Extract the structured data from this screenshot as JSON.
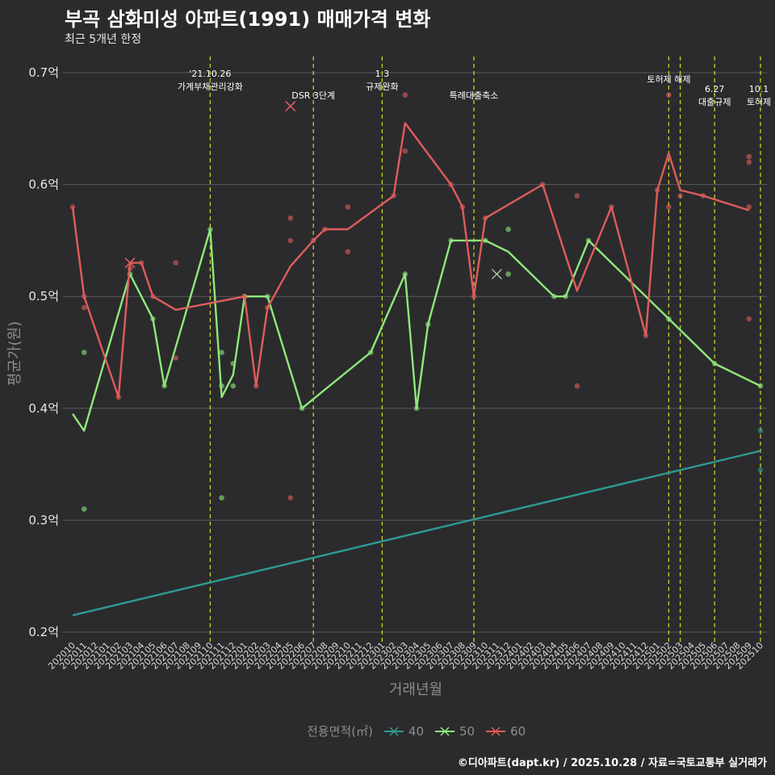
{
  "title": "부곡 삼화미성 아파트(1991) 매매가격 변화",
  "subtitle": "최근 5개년 한정",
  "caption": "©디아파트(dapt.kr) / 2025.10.28 / 자료=국토교통부 실거래가",
  "chart_data": {
    "type": "line",
    "title": "부곡 삼화미성 아파트(1991) 매매가격 변화",
    "xlabel": "거래년월",
    "ylabel": "평균가(원)",
    "ylim": [
      0.2,
      0.7
    ],
    "yticks": [
      0.2,
      0.3,
      0.4,
      0.5,
      0.6,
      0.7
    ],
    "ytick_labels": [
      "0.2억",
      "0.3억",
      "0.4억",
      "0.5억",
      "0.6억",
      "0.7억"
    ],
    "categories": [
      "202010",
      "202011",
      "202012",
      "202101",
      "202102",
      "202103",
      "202104",
      "202105",
      "202106",
      "202107",
      "202108",
      "202109",
      "202110",
      "202111",
      "202112",
      "202201",
      "202202",
      "202203",
      "202204",
      "202205",
      "202206",
      "202207",
      "202208",
      "202209",
      "202210",
      "202211",
      "202212",
      "202301",
      "202302",
      "202303",
      "202304",
      "202305",
      "202306",
      "202307",
      "202308",
      "202309",
      "202310",
      "202311",
      "202312",
      "202401",
      "202402",
      "202403",
      "202404",
      "202405",
      "202406",
      "202407",
      "202408",
      "202409",
      "202410",
      "202411",
      "202412",
      "202501",
      "202502",
      "202503",
      "202504",
      "202505",
      "202506",
      "202507",
      "202508",
      "202509",
      "202510"
    ],
    "legend_title": "전용면적(㎡)",
    "legend_position": "bottom",
    "series": [
      {
        "name": "40",
        "color": "#2e9a92",
        "line": [
          [
            0,
            0.215
          ],
          [
            60,
            0.362
          ]
        ],
        "points": [
          [
            60,
            0.38
          ],
          [
            60,
            0.345
          ]
        ],
        "crosses": []
      },
      {
        "name": "50",
        "color": "#8fe87c",
        "line": [
          [
            0,
            0.395
          ],
          [
            1,
            0.38
          ],
          [
            5,
            0.52
          ],
          [
            7,
            0.48
          ],
          [
            8,
            0.42
          ],
          [
            12,
            0.56
          ],
          [
            13,
            0.41
          ],
          [
            14,
            0.43
          ],
          [
            15,
            0.5
          ],
          [
            17,
            0.5
          ],
          [
            20,
            0.4
          ],
          [
            26,
            0.45
          ],
          [
            29,
            0.52
          ],
          [
            30,
            0.4
          ],
          [
            31,
            0.475
          ],
          [
            33,
            0.55
          ],
          [
            35,
            0.55
          ],
          [
            36,
            0.55
          ],
          [
            38,
            0.54
          ],
          [
            42,
            0.5
          ],
          [
            43,
            0.5
          ],
          [
            45,
            0.55
          ],
          [
            52,
            0.48
          ],
          [
            56,
            0.44
          ],
          [
            60,
            0.42
          ]
        ],
        "points": [
          [
            1,
            0.45
          ],
          [
            1,
            0.31
          ],
          [
            5,
            0.52
          ],
          [
            7,
            0.48
          ],
          [
            8,
            0.42
          ],
          [
            12,
            0.56
          ],
          [
            13,
            0.45
          ],
          [
            13,
            0.42
          ],
          [
            13,
            0.32
          ],
          [
            14,
            0.44
          ],
          [
            14,
            0.42
          ],
          [
            15,
            0.5
          ],
          [
            17,
            0.5
          ],
          [
            20,
            0.4
          ],
          [
            26,
            0.45
          ],
          [
            29,
            0.52
          ],
          [
            30,
            0.4
          ],
          [
            31,
            0.475
          ],
          [
            33,
            0.55
          ],
          [
            36,
            0.55
          ],
          [
            38,
            0.56
          ],
          [
            38,
            0.52
          ],
          [
            42,
            0.5
          ],
          [
            43,
            0.5
          ],
          [
            45,
            0.55
          ],
          [
            52,
            0.48
          ],
          [
            56,
            0.44
          ],
          [
            60,
            0.42
          ]
        ],
        "crosses": [
          [
            37,
            0.52
          ]
        ]
      },
      {
        "name": "60",
        "color": "#e05c5c",
        "line": [
          [
            0,
            0.58
          ],
          [
            1,
            0.5
          ],
          [
            4,
            0.41
          ],
          [
            5,
            0.53
          ],
          [
            6,
            0.53
          ],
          [
            7,
            0.5
          ],
          [
            9,
            0.488
          ],
          [
            15,
            0.5
          ],
          [
            16,
            0.42
          ],
          [
            17,
            0.49
          ],
          [
            19,
            0.527
          ],
          [
            21,
            0.55
          ],
          [
            22,
            0.56
          ],
          [
            24,
            0.56
          ],
          [
            28,
            0.59
          ],
          [
            29,
            0.655
          ],
          [
            33,
            0.6
          ],
          [
            34,
            0.58
          ],
          [
            35,
            0.5
          ],
          [
            36,
            0.57
          ],
          [
            41,
            0.6
          ],
          [
            44,
            0.505
          ],
          [
            47,
            0.58
          ],
          [
            50,
            0.465
          ],
          [
            51,
            0.595
          ],
          [
            52,
            0.628
          ],
          [
            53,
            0.595
          ],
          [
            55,
            0.59
          ],
          [
            59,
            0.577
          ]
        ],
        "points": [
          [
            0,
            0.58
          ],
          [
            1,
            0.5
          ],
          [
            1,
            0.49
          ],
          [
            4,
            0.41
          ],
          [
            5,
            0.525
          ],
          [
            6,
            0.53
          ],
          [
            7,
            0.5
          ],
          [
            9,
            0.53
          ],
          [
            9,
            0.445
          ],
          [
            15,
            0.5
          ],
          [
            16,
            0.42
          ],
          [
            17,
            0.49
          ],
          [
            19,
            0.57
          ],
          [
            19,
            0.55
          ],
          [
            19,
            0.32
          ],
          [
            21,
            0.55
          ],
          [
            22,
            0.56
          ],
          [
            24,
            0.58
          ],
          [
            24,
            0.54
          ],
          [
            28,
            0.59
          ],
          [
            29,
            0.68
          ],
          [
            29,
            0.63
          ],
          [
            33,
            0.6
          ],
          [
            34,
            0.58
          ],
          [
            35,
            0.5
          ],
          [
            36,
            0.57
          ],
          [
            41,
            0.6
          ],
          [
            44,
            0.59
          ],
          [
            44,
            0.42
          ],
          [
            47,
            0.58
          ],
          [
            50,
            0.465
          ],
          [
            51,
            0.595
          ],
          [
            52,
            0.68
          ],
          [
            52,
            0.58
          ],
          [
            53,
            0.59
          ],
          [
            55,
            0.59
          ],
          [
            59,
            0.625
          ],
          [
            59,
            0.62
          ],
          [
            59,
            0.58
          ],
          [
            59,
            0.48
          ]
        ],
        "crosses": [
          [
            5,
            0.53
          ],
          [
            19,
            0.67
          ]
        ]
      }
    ],
    "annotations": [
      {
        "x": 12,
        "lines": [
          "'21.10.26",
          "가계부채관리강화"
        ]
      },
      {
        "x": 21,
        "lines": [
          "DSR 3단계"
        ]
      },
      {
        "x": 27,
        "lines": [
          "1.3",
          "규제완화"
        ]
      },
      {
        "x": 35,
        "lines": [
          "특례대출축소"
        ]
      },
      {
        "x": 52,
        "lines": [
          "토허제 해제"
        ]
      },
      {
        "x": 53,
        "lines": [
          ""
        ]
      },
      {
        "x": 56,
        "lines": [
          "6.27",
          "대출규제"
        ]
      },
      {
        "x": 60,
        "lines": [
          "10.1",
          "토허제"
        ]
      }
    ]
  }
}
